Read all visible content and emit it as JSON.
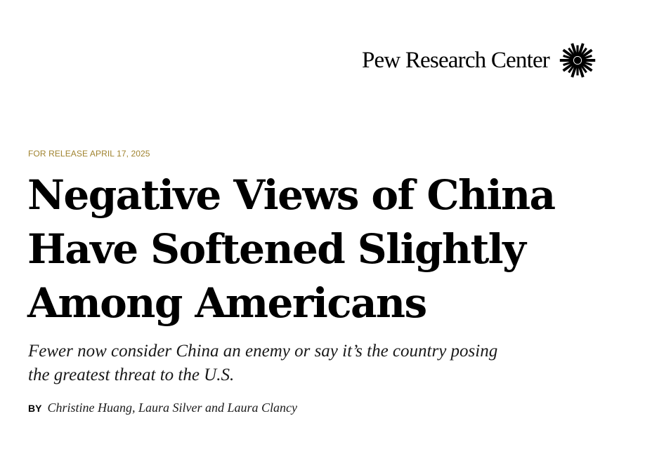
{
  "header": {
    "org_name": "Pew Research Center",
    "logo_icon": "sunburst-logo-icon",
    "logo_color": "#000000"
  },
  "release": {
    "text": "FOR RELEASE APRIL 17, 2025",
    "color": "#a0832f"
  },
  "article": {
    "title_lines": [
      "Negative Views of China",
      "Have Softened Slightly",
      "Among Americans"
    ],
    "subtitle_lines": [
      "Fewer now consider China an enemy or say it’s the country posing",
      "the greatest threat to the U.S."
    ],
    "byline_label": "BY",
    "authors": "Christine Huang, Laura Silver and Laura Clancy"
  }
}
